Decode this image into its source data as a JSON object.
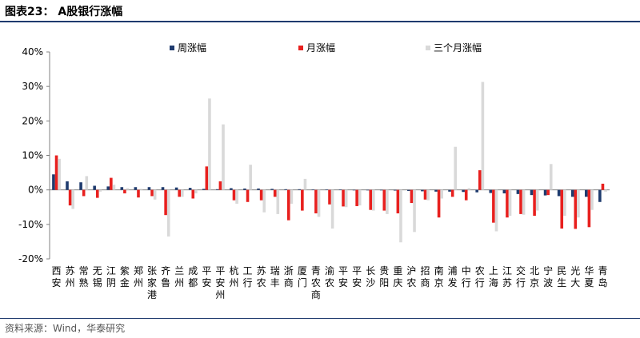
{
  "header": {
    "title": "图表23： A股银行涨幅"
  },
  "footer": {
    "source": "资料来源：Wind，华泰研究"
  },
  "colors": {
    "weekly": "#1f3b6e",
    "monthly": "#e8201e",
    "three_month": "#d9d9d9",
    "axis": "#808080",
    "rule": "#1f3b6e"
  },
  "chart_data": {
    "type": "bar",
    "title": "A股银行涨幅",
    "xlabel": "",
    "ylabel": "",
    "ylim": [
      -20,
      40
    ],
    "y_ticks": [
      "40%",
      "30%",
      "20%",
      "10%",
      "0%",
      "-10%",
      "-20%"
    ],
    "y_tick_values": [
      40,
      30,
      20,
      10,
      0,
      -10,
      -20
    ],
    "legend_position": "top",
    "categories": [
      "西安",
      "苏州",
      "常熟",
      "无锡",
      "江阴",
      "紫金",
      "郑州",
      "张家港",
      "齐鲁",
      "兰州",
      "成都",
      "平安",
      "平安州",
      "杭州",
      "工行",
      "苏农",
      "瑞丰",
      "浙商",
      "厦门",
      "青农商",
      "渝农",
      "平安",
      "平安",
      "长沙",
      "贵阳",
      "重庆",
      "沪农",
      "招商",
      "南京",
      "浦发",
      "中行",
      "农行",
      "上海",
      "江苏",
      "交行",
      "北京",
      "宁波",
      "民生",
      "光大",
      "华夏",
      "青岛"
    ],
    "series": [
      {
        "name": "周涨幅",
        "values": [
          4.5,
          2.5,
          2.2,
          1.2,
          1.0,
          0.8,
          0.8,
          0.8,
          0.8,
          0.7,
          0.6,
          0.3,
          0.2,
          0.5,
          0.4,
          0.4,
          0.3,
          0.2,
          0.2,
          0.1,
          0.1,
          0.1,
          0.0,
          0.0,
          0.0,
          -0.2,
          -0.3,
          -0.4,
          -0.5,
          -0.5,
          -0.6,
          -0.7,
          -0.9,
          -1.0,
          -1.2,
          -1.5,
          -1.6,
          -1.8,
          -2.0,
          -2.0,
          -3.5
        ]
      },
      {
        "name": "月涨幅",
        "values": [
          10.0,
          -4.5,
          -1.8,
          -2.3,
          3.5,
          -1.0,
          -2.2,
          -1.8,
          -7.3,
          -2.0,
          -2.5,
          6.8,
          2.5,
          -3.0,
          -3.5,
          -3.0,
          -2.0,
          -8.8,
          -6.0,
          -6.8,
          -4.2,
          -4.8,
          -4.7,
          -5.8,
          -6.0,
          -6.8,
          -3.8,
          -2.8,
          -8.0,
          -2.0,
          -3.0,
          5.7,
          -9.5,
          -8.0,
          -7.0,
          -7.5,
          -1.5,
          -11.2,
          -11.3,
          -10.8,
          1.8
        ]
      },
      {
        "name": "三个月涨幅",
        "values": [
          9.0,
          -5.5,
          4.0,
          -0.5,
          1.5,
          0.5,
          0.3,
          -2.8,
          -13.5,
          -2.0,
          -1.0,
          26.5,
          19.0,
          -4.0,
          7.3,
          -6.5,
          -7.0,
          -4.0,
          3.2,
          -7.8,
          -11.2,
          -5.0,
          -4.5,
          -6.0,
          -7.0,
          -15.2,
          -12.2,
          -3.0,
          -2.5,
          12.5,
          0.5,
          31.3,
          -12.0,
          -7.5,
          -7.2,
          -6.0,
          7.5,
          -7.5,
          -8.0,
          -5.8,
          -0.5
        ]
      }
    ]
  }
}
